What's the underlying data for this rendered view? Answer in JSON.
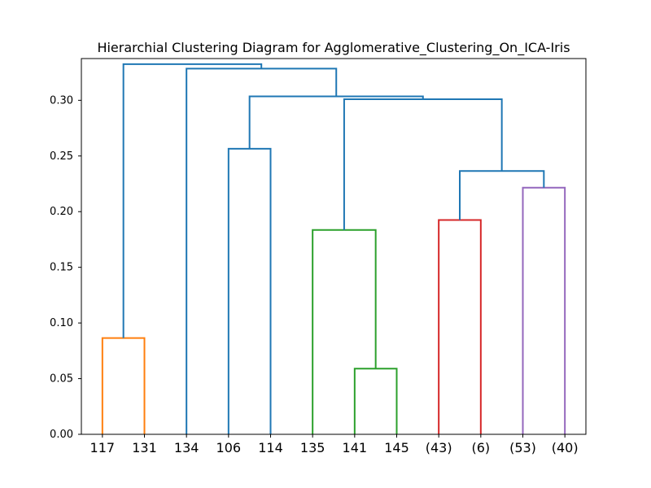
{
  "chart_data": {
    "type": "dendrogram",
    "title": "Hierarchial Clustering Diagram for Agglomerative_Clustering_On_ICA-Iris",
    "xlabel": "",
    "ylabel": "",
    "ylim": [
      0,
      0.3375
    ],
    "yticks": [
      "0.00",
      "0.05",
      "0.10",
      "0.15",
      "0.20",
      "0.25",
      "0.30"
    ],
    "grid": false,
    "leaves": [
      "117",
      "131",
      "134",
      "106",
      "114",
      "135",
      "141",
      "145",
      "(43)",
      "(6)",
      "(53)",
      "(40)"
    ],
    "merges": [
      {
        "height": 0.0865,
        "left": [
          0
        ],
        "right": [
          1
        ],
        "color": "#ff7f0e"
      },
      {
        "height": 0.059,
        "left": [
          6
        ],
        "right": [
          7
        ],
        "color": "#2ca02c"
      },
      {
        "height": 0.1835,
        "left": [
          5
        ],
        "right": [
          6,
          7
        ],
        "color": "#2ca02c"
      },
      {
        "height": 0.1925,
        "left": [
          8
        ],
        "right": [
          9
        ],
        "color": "#d62728"
      },
      {
        "height": 0.2215,
        "left": [
          10
        ],
        "right": [
          11
        ],
        "color": "#9467bd"
      },
      {
        "height": 0.2565,
        "left": [
          3
        ],
        "right": [
          4
        ],
        "color": "#1f77b4"
      },
      {
        "height": 0.2365,
        "left": [
          8,
          9
        ],
        "right": [
          10,
          11
        ],
        "color": "#1f77b4"
      },
      {
        "height": 0.301,
        "left": [
          5,
          6,
          7
        ],
        "right": [
          8,
          9,
          10,
          11
        ],
        "color": "#1f77b4"
      },
      {
        "height": 0.3035,
        "left": [
          3,
          4
        ],
        "right": [
          5,
          6,
          7,
          8,
          9,
          10,
          11
        ],
        "color": "#1f77b4"
      },
      {
        "height": 0.3285,
        "left": [
          2
        ],
        "right": [
          3,
          4,
          5,
          6,
          7,
          8,
          9,
          10,
          11
        ],
        "color": "#1f77b4"
      },
      {
        "height": 0.3325,
        "left": [
          0,
          1
        ],
        "right": [
          2,
          3,
          4,
          5,
          6,
          7,
          8,
          9,
          10,
          11
        ],
        "color": "#1f77b4"
      }
    ]
  }
}
